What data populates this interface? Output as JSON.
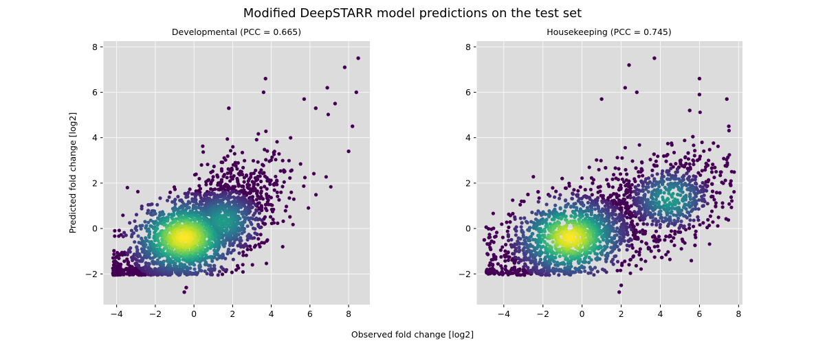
{
  "figure": {
    "title": "Modified DeepSTARR model predictions on the test set",
    "xlabel": "Observed fold change [log2]",
    "ylabel": "Predicted fold change [log2]"
  },
  "chart_data": [
    {
      "type": "scatter",
      "title": "Developmental (PCC = 0.665)",
      "xlabel": "Observed fold change [log2]",
      "ylabel": "Predicted fold change [log2]",
      "xlim": [
        -4.7,
        9.1
      ],
      "ylim": [
        -3.35,
        8.25
      ],
      "xticks": [
        -4,
        -2,
        0,
        2,
        4,
        6,
        8
      ],
      "yticks": [
        -2,
        0,
        2,
        4,
        6,
        8
      ],
      "grid": true,
      "background": "#dcdcdc",
      "colormap": "viridis",
      "density_center": {
        "x": -0.5,
        "y": -0.4
      },
      "secondary_cluster": {
        "x": 1.5,
        "y": 0.3
      },
      "outliers": [
        {
          "x": 8.5,
          "y": 7.5
        },
        {
          "x": 7.8,
          "y": 7.1
        },
        {
          "x": 3.7,
          "y": 6.6
        },
        {
          "x": 8.4,
          "y": 6.0
        },
        {
          "x": 6.9,
          "y": 6.2
        },
        {
          "x": 5.7,
          "y": 5.7
        },
        {
          "x": 3.6,
          "y": 6.0
        },
        {
          "x": 1.8,
          "y": 5.3
        },
        {
          "x": 6.3,
          "y": 5.3
        },
        {
          "x": 7.3,
          "y": 5.5
        },
        {
          "x": 8.2,
          "y": 4.5
        },
        {
          "x": 8.0,
          "y": 3.4
        },
        {
          "x": -0.4,
          "y": -2.6
        },
        {
          "x": -0.5,
          "y": -2.8
        },
        {
          "x": -3.4,
          "y": -1.5
        }
      ]
    },
    {
      "type": "scatter",
      "title": "Housekeeping (PCC = 0.745)",
      "xlabel": "Observed fold change [log2]",
      "ylabel": "Predicted fold change [log2]",
      "xlim": [
        -5.4,
        8.2
      ],
      "ylim": [
        -3.35,
        8.25
      ],
      "xticks": [
        -4,
        -2,
        0,
        2,
        4,
        6,
        8
      ],
      "yticks": [
        -2,
        0,
        2,
        4,
        6,
        8
      ],
      "grid": true,
      "background": "#dcdcdc",
      "colormap": "viridis",
      "density_center": {
        "x": -0.6,
        "y": -0.4
      },
      "secondary_cluster": {
        "x": 4.5,
        "y": 1.3
      },
      "outliers": [
        {
          "x": 3.7,
          "y": 7.5
        },
        {
          "x": 2.4,
          "y": 7.2
        },
        {
          "x": 6.0,
          "y": 6.6
        },
        {
          "x": 2.2,
          "y": 6.2
        },
        {
          "x": 2.8,
          "y": 6.0
        },
        {
          "x": 6.0,
          "y": 5.9
        },
        {
          "x": 7.4,
          "y": 5.7
        },
        {
          "x": 7.5,
          "y": 4.5
        },
        {
          "x": 1.0,
          "y": 5.7
        },
        {
          "x": 5.5,
          "y": 5.2
        },
        {
          "x": 2.0,
          "y": -2.5
        },
        {
          "x": 1.9,
          "y": -2.8
        },
        {
          "x": -5.0,
          "y": -0.5
        },
        {
          "x": 7.6,
          "y": 1.9
        }
      ]
    }
  ]
}
